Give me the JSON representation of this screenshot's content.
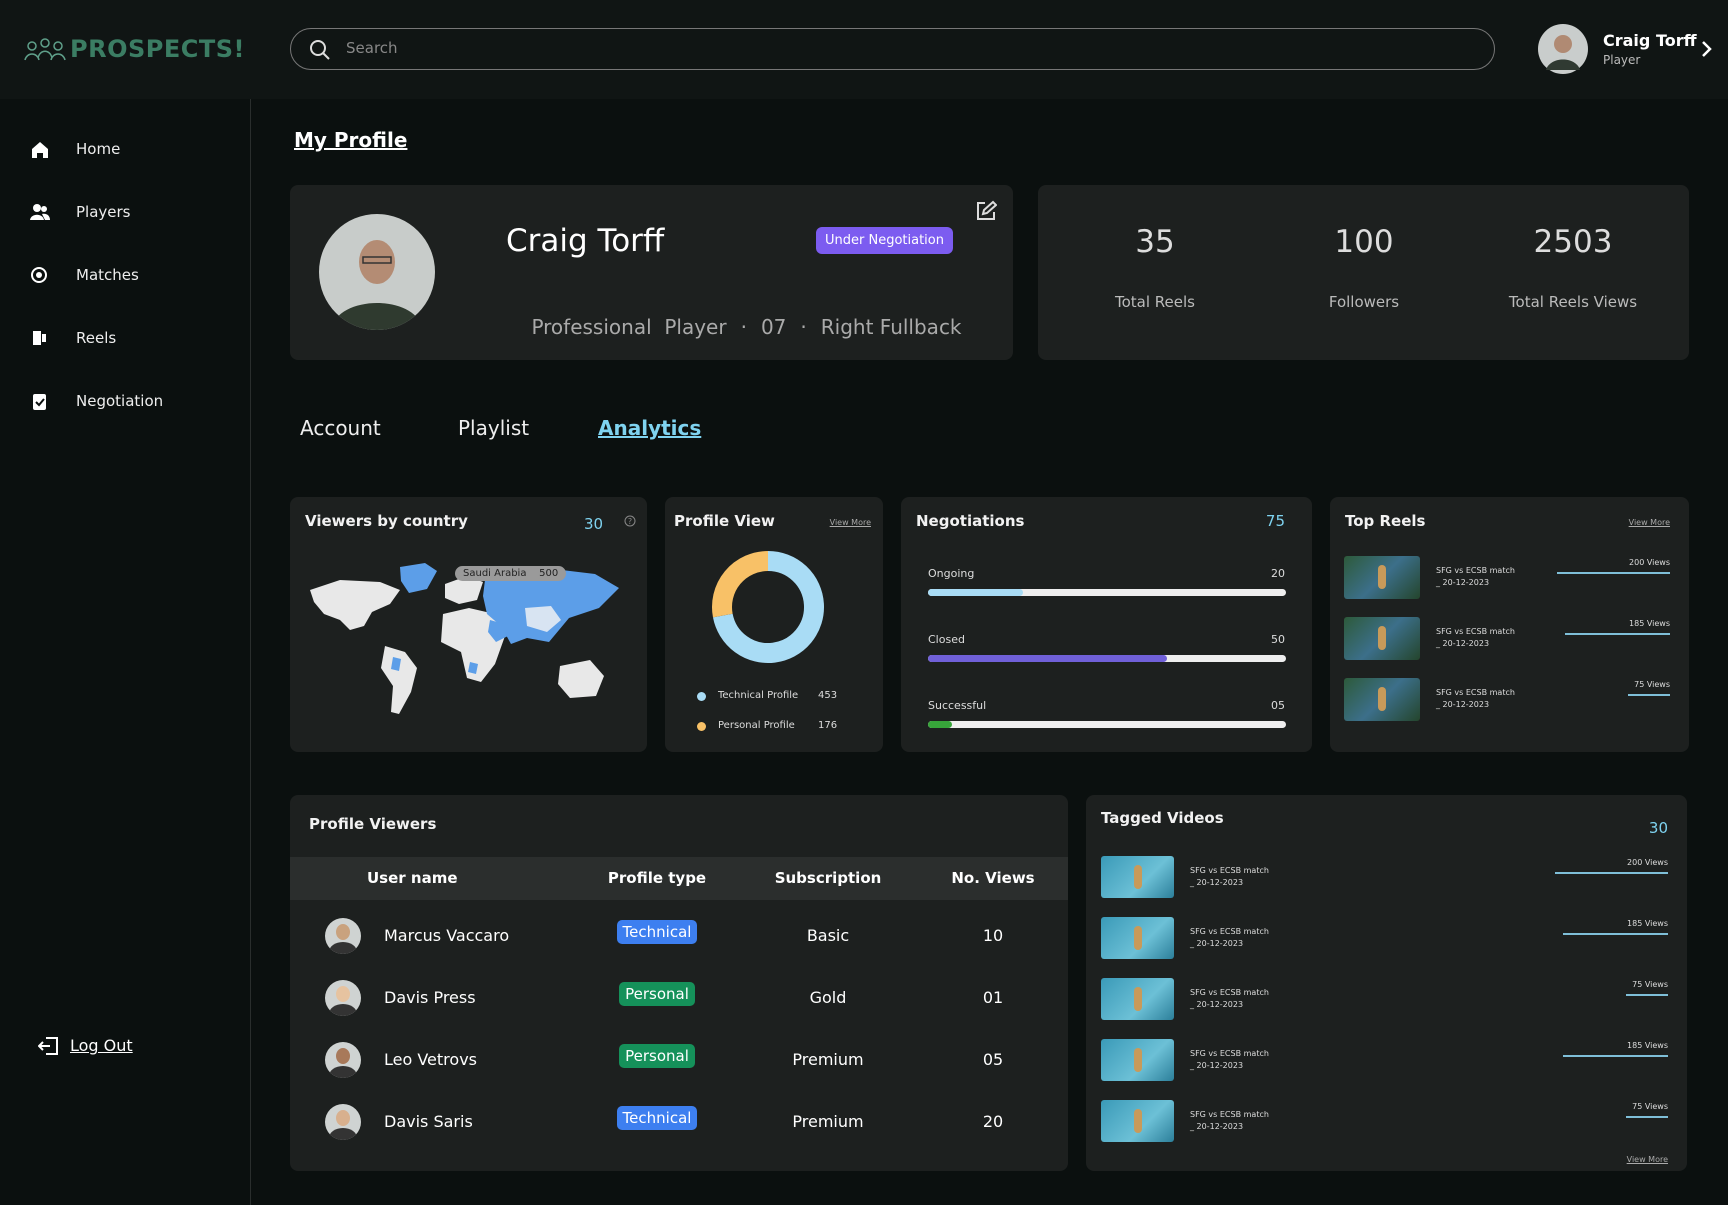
{
  "brand": "PROSPECTS!",
  "search_placeholder": "Search",
  "user": {
    "name": "Craig Torff",
    "role": "Player"
  },
  "nav": [
    "Home",
    "Players",
    "Matches",
    "Reels",
    "Negotiation"
  ],
  "logout": "Log Out",
  "page_title": "My Profile",
  "profile": {
    "name": "Craig Torff",
    "status": "Under Negotiation",
    "details": [
      "Professional  Player",
      "07",
      "Right Fullback"
    ]
  },
  "stats": [
    {
      "value": "35",
      "label": "Total Reels"
    },
    {
      "value": "100",
      "label": "Followers"
    },
    {
      "value": "2503",
      "label": "Total Reels Views"
    }
  ],
  "tabs": [
    "Account",
    "Playlist",
    "Analytics"
  ],
  "active_tab": 2,
  "viewers_by_country": {
    "title": "Viewers by country",
    "count": "30",
    "tooltip": {
      "country": "Saudi Arabia",
      "value": "500"
    }
  },
  "profile_view": {
    "title": "Profile View",
    "link": "View More",
    "segments": [
      {
        "name": "Technical Profile",
        "value": 453,
        "color": "#a9dcf5"
      },
      {
        "name": "Personal Profile",
        "value": 176,
        "color": "#f8c167"
      }
    ]
  },
  "negotiations": {
    "title": "Negotiations",
    "total": 75,
    "items": [
      {
        "name": "Ongoing",
        "value": 20,
        "color": "#a9dcf5"
      },
      {
        "name": "Closed",
        "value": 50,
        "color": "#7060d8"
      },
      {
        "name": "Successful",
        "value": 5,
        "value_label": "05",
        "color": "#37a53a"
      }
    ]
  },
  "top_reels": {
    "title": "Top Reels",
    "link": "View More",
    "items": [
      {
        "title": "SFG vs ECSB match",
        "date": "_ 20-12-2023",
        "views": 200,
        "views_label": "200 Views"
      },
      {
        "title": "SFG vs ECSB match",
        "date": "_ 20-12-2023",
        "views": 185,
        "views_label": "185 Views"
      },
      {
        "title": "SFG vs ECSB match",
        "date": "_ 20-12-2023",
        "views": 75,
        "views_label": "75 Views"
      }
    ]
  },
  "profile_viewers": {
    "title": "Profile Viewers",
    "columns": [
      "User name",
      "Profile type",
      "Subscription",
      "No. Views"
    ],
    "rows": [
      {
        "user": "Marcus Vaccaro",
        "type": "Technical",
        "type_color": "#3d7ff0",
        "subscription": "Basic",
        "views": "10"
      },
      {
        "user": "Davis Press",
        "type": "Personal",
        "type_color": "#15915a",
        "subscription": "Gold",
        "views": "01"
      },
      {
        "user": "Leo Vetrovs",
        "type": "Personal",
        "type_color": "#15915a",
        "subscription": "Premium",
        "views": "05"
      },
      {
        "user": "Davis Saris",
        "type": "Technical",
        "type_color": "#3d7ff0",
        "subscription": "Premium",
        "views": "20"
      }
    ]
  },
  "tagged_videos": {
    "title": "Tagged Videos",
    "count": "30",
    "link": "View More",
    "items": [
      {
        "title": "SFG vs ECSB match",
        "date": "_ 20-12-2023",
        "views": 200,
        "views_label": "200 Views"
      },
      {
        "title": "SFG vs ECSB match",
        "date": "_ 20-12-2023",
        "views": 185,
        "views_label": "185 Views"
      },
      {
        "title": "SFG vs ECSB match",
        "date": "_ 20-12-2023",
        "views": 75,
        "views_label": "75 Views"
      },
      {
        "title": "SFG vs ECSB match",
        "date": "_ 20-12-2023",
        "views": 185,
        "views_label": "185 Views"
      },
      {
        "title": "SFG vs ECSB match",
        "date": "_ 20-12-2023",
        "views": 75,
        "views_label": "75 Views"
      }
    ]
  }
}
